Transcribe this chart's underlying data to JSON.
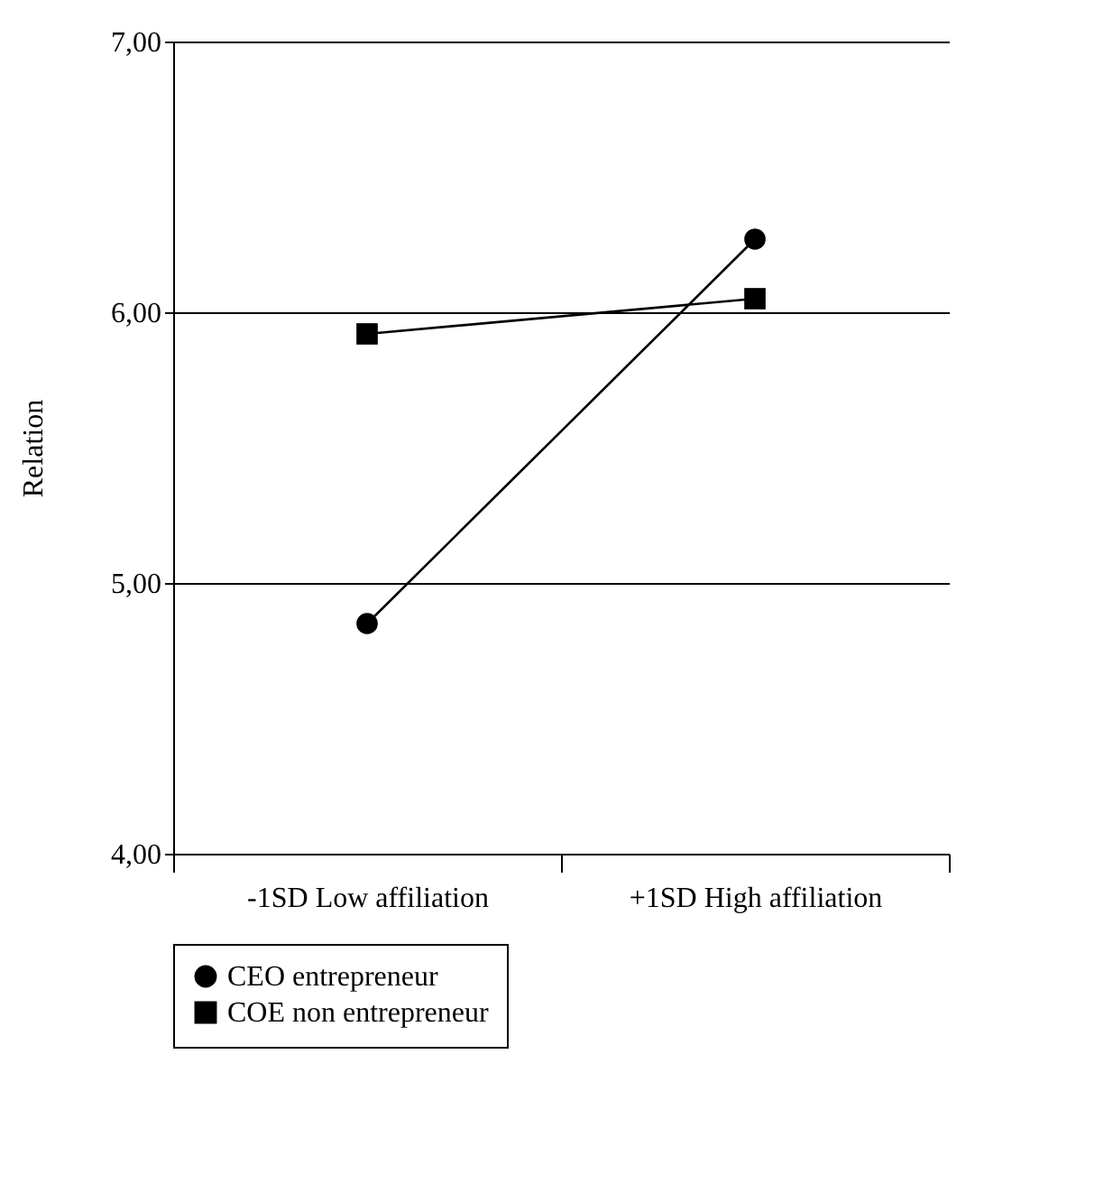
{
  "chart_data": {
    "type": "line",
    "ylabel": "Relation",
    "categories": [
      "-1SD Low affiliation",
      "+1SD High affiliation"
    ],
    "series": [
      {
        "name": "CEO entrepreneur",
        "color": "#000000",
        "marker": "circle",
        "values": [
          4.85,
          6.27
        ]
      },
      {
        "name": "COE non entrepreneur",
        "color": "#000000",
        "marker": "square",
        "values": [
          5.92,
          6.05
        ]
      }
    ],
    "ylim": [
      4,
      7
    ],
    "yticks": [
      {
        "value": 4,
        "label": "4,00"
      },
      {
        "value": 5,
        "label": "5,00"
      },
      {
        "value": 6,
        "label": "6,00"
      },
      {
        "value": 7,
        "label": "7,00"
      }
    ],
    "grid": "y",
    "legend": "bottom",
    "line_style": "solid"
  }
}
